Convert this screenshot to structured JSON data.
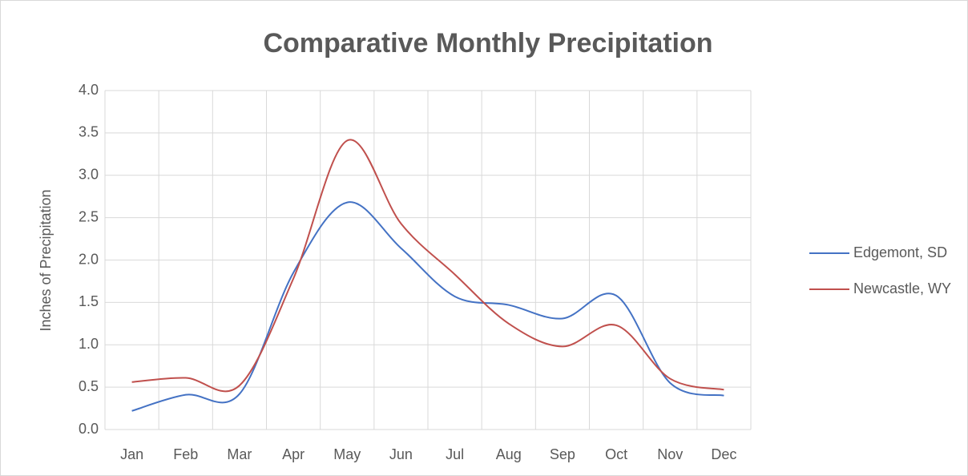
{
  "chart_data": {
    "type": "line",
    "title": "Comparative Monthly Precipitation",
    "y_label": "Inches of Precipitation",
    "categories": [
      "Jan",
      "Feb",
      "Mar",
      "Apr",
      "May",
      "Jun",
      "Jul",
      "Aug",
      "Sep",
      "Oct",
      "Nov",
      "Dec"
    ],
    "series": [
      {
        "name": "Edgemont, SD",
        "color": "#4472c4",
        "values": [
          0.22,
          0.41,
          0.42,
          1.85,
          2.68,
          2.14,
          1.57,
          1.47,
          1.31,
          1.58,
          0.55,
          0.4
        ]
      },
      {
        "name": "Newcastle, WY",
        "color": "#c0504d",
        "values": [
          0.56,
          0.61,
          0.52,
          1.78,
          3.41,
          2.43,
          1.83,
          1.25,
          0.98,
          1.23,
          0.6,
          0.47
        ]
      }
    ],
    "ylim": [
      0,
      4
    ],
    "yticks": [
      {
        "value": 0,
        "label": "0.0"
      },
      {
        "value": 0.5,
        "label": "0.5"
      },
      {
        "value": 1,
        "label": "1.0"
      },
      {
        "value": 1.5,
        "label": "1.5"
      },
      {
        "value": 2,
        "label": "2.0"
      },
      {
        "value": 2.5,
        "label": "2.5"
      },
      {
        "value": 3,
        "label": "3.0"
      },
      {
        "value": 3.5,
        "label": "3.5"
      },
      {
        "value": 4,
        "label": "4.0"
      }
    ],
    "grid": true,
    "smooth": true,
    "legend": "right"
  }
}
